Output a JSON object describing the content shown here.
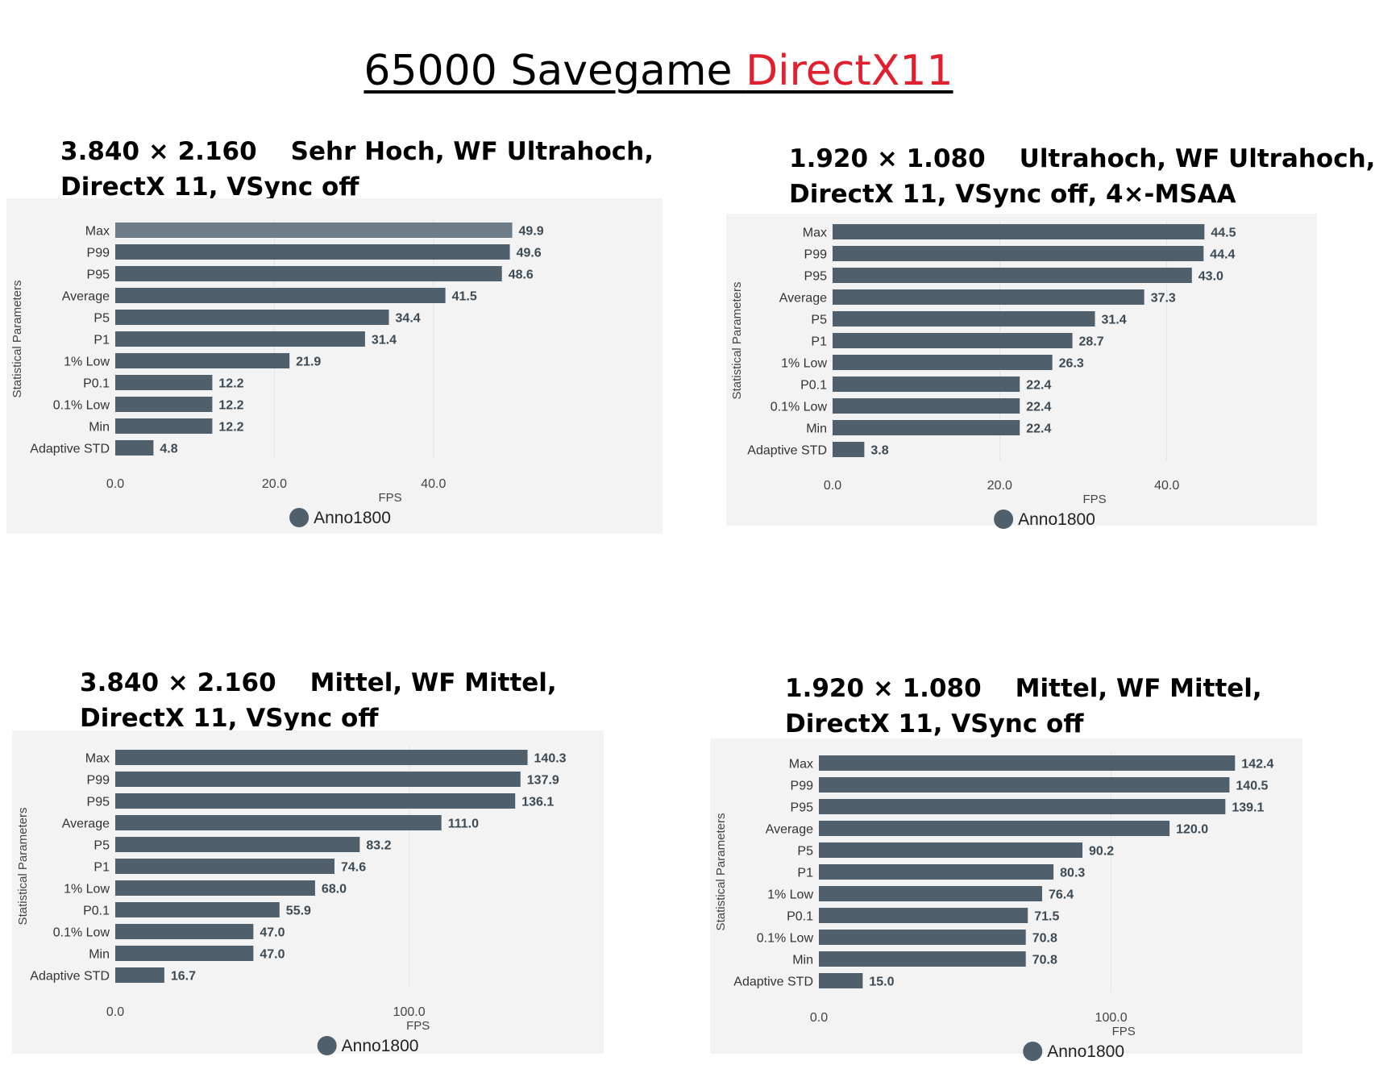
{
  "title": {
    "part1": "65000 Savegame ",
    "part2": "DirectX11",
    "part2_color": "#e0202e"
  },
  "bar_color": "#4f5f6b",
  "chart_data": [
    {
      "type": "bar",
      "orientation": "horizontal",
      "title_line1_res": "3.840 × 2.160",
      "title_line1_rest": "Sehr Hoch, WF Ultrahoch,",
      "title_line2": "DirectX 11, VSync off",
      "ylabel": "Statistical Parameters",
      "xlabel": "FPS",
      "legend": "Anno1800",
      "categories": [
        "Max",
        "P99",
        "P95",
        "Average",
        "P5",
        "P1",
        "1% Low",
        "P0.1",
        "0.1% Low",
        "Min",
        "Adaptive STD"
      ],
      "values": [
        49.9,
        49.6,
        48.6,
        41.5,
        34.4,
        31.4,
        21.9,
        12.2,
        12.2,
        12.2,
        4.8
      ],
      "labels": [
        "49.9",
        "49.6",
        "48.6",
        "41.5",
        "34.4",
        "31.4",
        "21.9",
        "12.2",
        "12.2",
        "12.2",
        "4.8"
      ],
      "xticks": [
        0,
        20,
        40
      ],
      "xtick_labels": [
        "0.0",
        "20.0",
        "40.0"
      ],
      "xlim": [
        0,
        54
      ]
    },
    {
      "type": "bar",
      "orientation": "horizontal",
      "title_line1_res": "1.920 × 1.080",
      "title_line1_rest": "Ultrahoch, WF Ultrahoch,",
      "title_line2": "DirectX 11, VSync off, 4×-MSAA",
      "ylabel": "Statistical Parameters",
      "xlabel": "FPS",
      "legend": "Anno1800",
      "categories": [
        "Max",
        "P99",
        "P95",
        "Average",
        "P5",
        "P1",
        "1% Low",
        "P0.1",
        "0.1% Low",
        "Min",
        "Adaptive STD"
      ],
      "values": [
        44.5,
        44.4,
        43.0,
        37.3,
        31.4,
        28.7,
        26.3,
        22.4,
        22.4,
        22.4,
        3.8
      ],
      "labels": [
        "44.5",
        "44.4",
        "43.0",
        "37.3",
        "31.4",
        "28.7",
        "26.3",
        "22.4",
        "22.4",
        "22.4",
        "3.8"
      ],
      "xticks": [
        0,
        20,
        40
      ],
      "xtick_labels": [
        "0.0",
        "20.0",
        "40.0"
      ],
      "xlim": [
        0,
        49
      ]
    },
    {
      "type": "bar",
      "orientation": "horizontal",
      "title_line1_res": "3.840 × 2.160",
      "title_line1_rest": "Mittel, WF Mittel,",
      "title_line2": "DirectX 11, VSync off",
      "ylabel": "Statistical Parameters",
      "xlabel": "FPS",
      "legend": "Anno1800",
      "categories": [
        "Max",
        "P99",
        "P95",
        "Average",
        "P5",
        "P1",
        "1% Low",
        "P0.1",
        "0.1% Low",
        "Min",
        "Adaptive STD"
      ],
      "values": [
        140.3,
        137.9,
        136.1,
        111.0,
        83.2,
        74.6,
        68.0,
        55.9,
        47.0,
        47.0,
        16.7
      ],
      "labels": [
        "140.3",
        "137.9",
        "136.1",
        "111.0",
        "83.2",
        "74.6",
        "68.0",
        "55.9",
        "47.0",
        "47.0",
        "16.7"
      ],
      "xticks": [
        0,
        100
      ],
      "xtick_labels": [
        "0.0",
        "100.0"
      ],
      "xlim": [
        0,
        161
      ]
    },
    {
      "type": "bar",
      "orientation": "horizontal",
      "title_line1_res": "1.920 × 1.080",
      "title_line1_rest": "Mittel, WF Mittel,",
      "title_line2": "DirectX 11, VSync off",
      "ylabel": "Statistical Parameters",
      "xlabel": "FPS",
      "legend": "Anno1800",
      "categories": [
        "Max",
        "P99",
        "P95",
        "Average",
        "P5",
        "P1",
        "1% Low",
        "P0.1",
        "0.1% Low",
        "Min",
        "Adaptive STD"
      ],
      "values": [
        142.4,
        140.5,
        139.1,
        120.0,
        90.2,
        80.3,
        76.4,
        71.5,
        70.8,
        70.8,
        15.0
      ],
      "labels": [
        "142.4",
        "140.5",
        "139.1",
        "120.0",
        "90.2",
        "80.3",
        "76.4",
        "71.5",
        "70.8",
        "70.8",
        "15.0"
      ],
      "xticks": [
        0,
        100
      ],
      "xtick_labels": [
        "0.0",
        "100.0"
      ],
      "xlim": [
        0,
        163
      ]
    }
  ]
}
